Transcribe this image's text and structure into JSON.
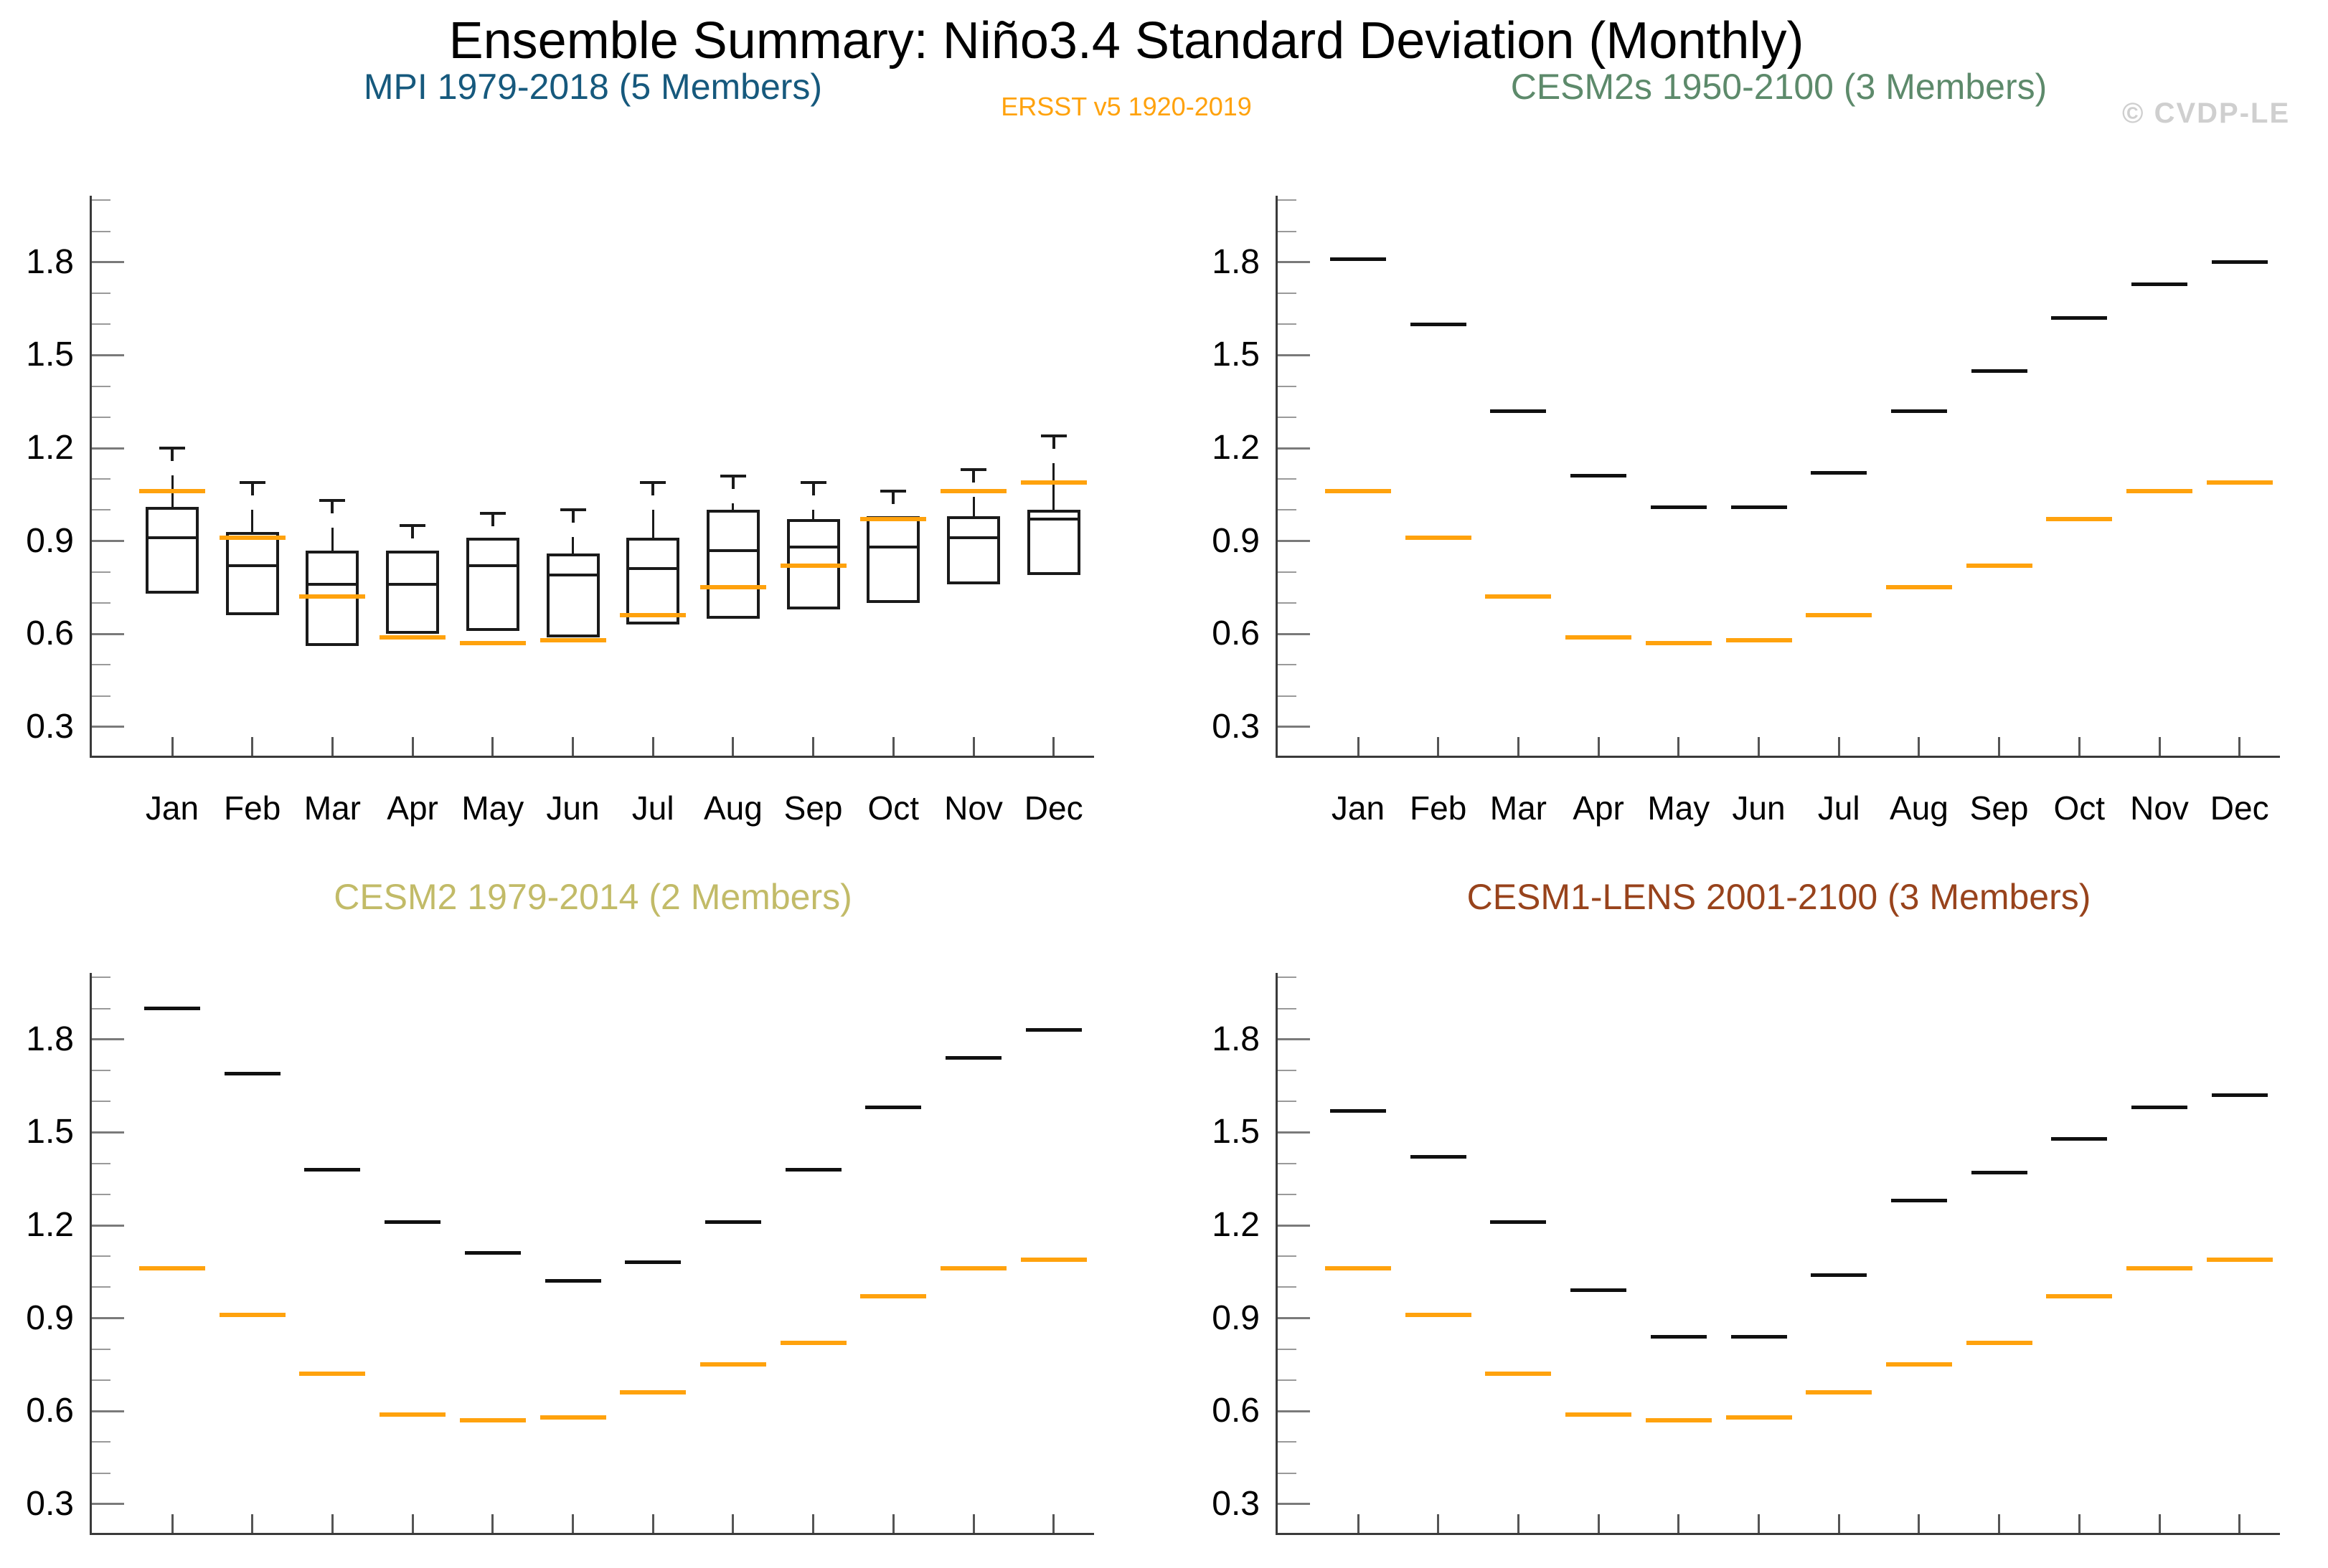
{
  "page": {
    "title": "Ensemble Summary: Niño3.4 Standard Deviation (Monthly)",
    "subtitle": "ERSST v5 1920-2019",
    "watermark": "© CVDP-LE"
  },
  "colors": {
    "obs_orange": "#ffa20d",
    "ensemble_black": "#101010",
    "watermark_gray": "#cfcfcf",
    "title_mpi": "#16597d",
    "title_cesm2s": "#5d8a6b",
    "title_cesm2": "#c2bb68",
    "title_cesm1_lens": "#98431c"
  },
  "axis": {
    "months": [
      "Jan",
      "Feb",
      "Mar",
      "Apr",
      "May",
      "Jun",
      "Jul",
      "Aug",
      "Sep",
      "Oct",
      "Nov",
      "Dec"
    ],
    "ytick_labels": [
      "0.3",
      "0.6",
      "0.9",
      "1.2",
      "1.5",
      "1.8"
    ],
    "ytick_values": [
      0.3,
      0.6,
      0.9,
      1.2,
      1.5,
      1.8
    ],
    "yminor_values": [
      0.4,
      0.5,
      0.7,
      0.8,
      1.0,
      1.1,
      1.3,
      1.4,
      1.6,
      1.7,
      1.9,
      2.0
    ],
    "ylim": [
      0.2,
      2.015
    ],
    "grid": false,
    "legend": "none"
  },
  "chart_data": [
    {
      "type": "box",
      "title": "MPI 1979-2018 (5 Members)",
      "title_color": "#16597d",
      "categories": [
        "Jan",
        "Feb",
        "Mar",
        "Apr",
        "May",
        "Jun",
        "Jul",
        "Aug",
        "Sep",
        "Oct",
        "Nov",
        "Dec"
      ],
      "boxes": [
        {
          "q1": 0.73,
          "median": 0.91,
          "q3": 1.01,
          "whisker_max": 1.2
        },
        {
          "q1": 0.66,
          "median": 0.82,
          "q3": 0.93,
          "whisker_max": 1.09
        },
        {
          "q1": 0.56,
          "median": 0.76,
          "q3": 0.87,
          "whisker_max": 1.03
        },
        {
          "q1": 0.6,
          "median": 0.76,
          "q3": 0.87,
          "whisker_max": 0.95
        },
        {
          "q1": 0.61,
          "median": 0.82,
          "q3": 0.91,
          "whisker_max": 0.99
        },
        {
          "q1": 0.59,
          "median": 0.79,
          "q3": 0.86,
          "whisker_max": 1.0
        },
        {
          "q1": 0.63,
          "median": 0.81,
          "q3": 0.91,
          "whisker_max": 1.09
        },
        {
          "q1": 0.65,
          "median": 0.87,
          "q3": 1.0,
          "whisker_max": 1.11
        },
        {
          "q1": 0.68,
          "median": 0.88,
          "q3": 0.97,
          "whisker_max": 1.09
        },
        {
          "q1": 0.7,
          "median": 0.88,
          "q3": 0.98,
          "whisker_max": 1.06
        },
        {
          "q1": 0.76,
          "median": 0.91,
          "q3": 0.98,
          "whisker_max": 1.13
        },
        {
          "q1": 0.79,
          "median": 0.97,
          "q3": 1.0,
          "whisker_max": 1.24
        }
      ],
      "obs": [
        1.06,
        0.91,
        0.72,
        0.59,
        0.57,
        0.58,
        0.66,
        0.75,
        0.82,
        0.97,
        1.06,
        1.09
      ]
    },
    {
      "type": "dash",
      "title": "CESM2s 1950-2100 (3 Members)",
      "title_color": "#5d8a6b",
      "categories": [
        "Jan",
        "Feb",
        "Mar",
        "Apr",
        "May",
        "Jun",
        "Jul",
        "Aug",
        "Sep",
        "Oct",
        "Nov",
        "Dec"
      ],
      "values": [
        1.81,
        1.6,
        1.32,
        1.11,
        1.01,
        1.01,
        1.12,
        1.32,
        1.45,
        1.62,
        1.73,
        1.8
      ],
      "obs": [
        1.06,
        0.91,
        0.72,
        0.59,
        0.57,
        0.58,
        0.66,
        0.75,
        0.82,
        0.97,
        1.06,
        1.09
      ]
    },
    {
      "type": "dash",
      "title": "CESM2 1979-2014 (2 Members)",
      "title_color": "#c2bb68",
      "categories": [
        "Jan",
        "Feb",
        "Mar",
        "Apr",
        "May",
        "Jun",
        "Jul",
        "Aug",
        "Sep",
        "Oct",
        "Nov",
        "Dec"
      ],
      "values": [
        1.9,
        1.69,
        1.38,
        1.21,
        1.11,
        1.02,
        1.08,
        1.21,
        1.38,
        1.58,
        1.74,
        1.83
      ],
      "obs": [
        1.06,
        0.91,
        0.72,
        0.59,
        0.57,
        0.58,
        0.66,
        0.75,
        0.82,
        0.97,
        1.06,
        1.09
      ]
    },
    {
      "type": "dash",
      "title": "CESM1-LENS 2001-2100 (3 Members)",
      "title_color": "#98431c",
      "categories": [
        "Jan",
        "Feb",
        "Mar",
        "Apr",
        "May",
        "Jun",
        "Jul",
        "Aug",
        "Sep",
        "Oct",
        "Nov",
        "Dec"
      ],
      "values": [
        1.57,
        1.42,
        1.21,
        0.99,
        0.84,
        0.84,
        1.04,
        1.28,
        1.37,
        1.48,
        1.58,
        1.62
      ],
      "obs": [
        1.06,
        0.91,
        0.72,
        0.59,
        0.57,
        0.58,
        0.66,
        0.75,
        0.82,
        0.97,
        1.06,
        1.09
      ]
    }
  ]
}
